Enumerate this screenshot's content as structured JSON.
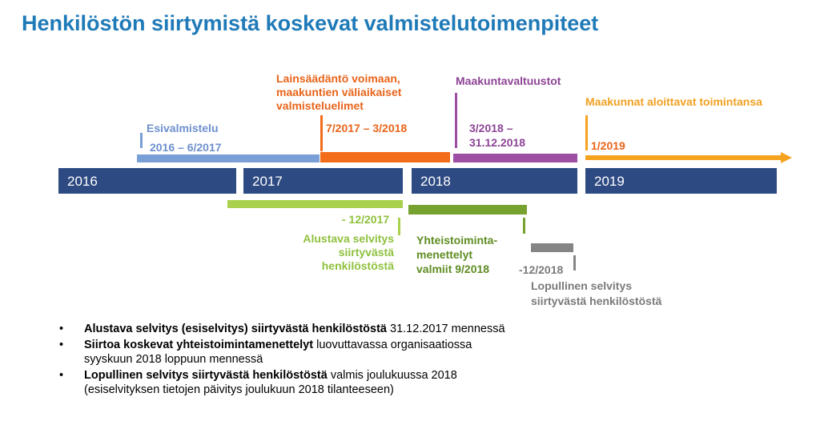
{
  "title": "Henkilöstön siirtymistä koskevat valmistelutoimenpiteet",
  "years": [
    "2016",
    "2017",
    "2018",
    "2019"
  ],
  "phases": {
    "esivalmistelu": {
      "label": "Esivalmistelu",
      "period": "2016 – 6/2017",
      "color": "#7a9fd6",
      "text_color": "#6d8fcd"
    },
    "lainsaadanto": {
      "label_lines": [
        "Lainsäädäntö voimaan,",
        "maakuntien väliaikaiset",
        "valmisteluelimet"
      ],
      "period": "7/2017 – 3/2018",
      "color": "#f26c1a",
      "text_color": "#e8641a"
    },
    "maakuntavaltuustot": {
      "label": "Maakuntavaltuustot",
      "period_lines": [
        "3/2018 –",
        "31.12.2018"
      ],
      "color": "#9d4fa3",
      "text_color": "#8d4496"
    },
    "maakunnat": {
      "label": "Maakunnat aloittavat  toimintansa",
      "period": "1/2019",
      "color": "#f5a21e",
      "text_color": "#f0a020"
    },
    "alustava": {
      "period": "- 12/2017",
      "label_lines": [
        "Alustava selvitys",
        "siirtyvästä",
        "henkilöstöstä"
      ],
      "color": "#a9d14d",
      "text_color": "#8fc13e"
    },
    "yhteistoiminta": {
      "label_lines": [
        "Yhteistoiminta-",
        "menettelyt",
        "valmiit 9/2018"
      ],
      "color": "#78a22f",
      "text_color": "#5f8d23"
    },
    "lopullinen": {
      "period": "-12/2018",
      "label_lines": [
        "Lopullinen selvitys",
        "siirtyvästä henkilöstöstä"
      ],
      "color": "#858585",
      "text_color": "#7a7a7a"
    }
  },
  "notes": [
    {
      "bold": "Alustava selvitys (esiselvitys) siirtyvästä henkilöstöstä",
      "lines": [
        " 31.12.2017 mennessä"
      ]
    },
    {
      "bold": "Siirtoa koskevat yhteistoimintamenettelyt",
      "lines": [
        " luovuttavassa organisaatiossa",
        "syyskuun 2018 loppuun mennessä"
      ]
    },
    {
      "bold": "Lopullinen selvitys siirtyvästä henkilöstöstä",
      "lines": [
        " valmis joulukuussa 2018",
        "(esiselvityksen tietojen päivitys joulukuun 2018 tilanteeseen)"
      ]
    }
  ],
  "bullet": "•"
}
